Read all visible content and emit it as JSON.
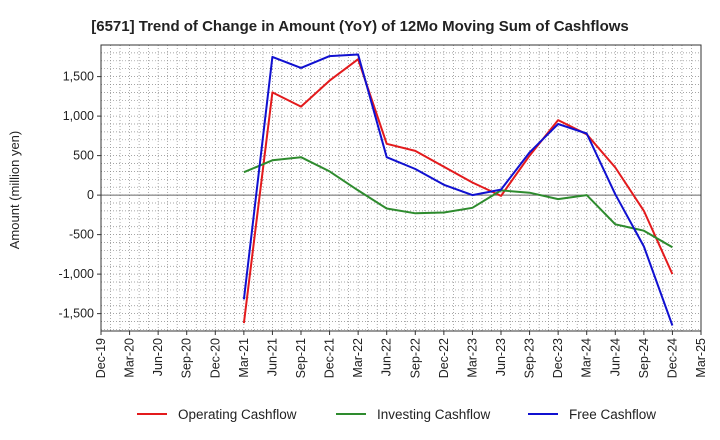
{
  "chart_data": {
    "type": "line",
    "title": "[6571]  Trend of Change in Amount (YoY) of 12Mo Moving Sum of Cashflows",
    "xlabel": "",
    "ylabel": "Amount (million yen)",
    "ylim": [
      -1720,
      1900
    ],
    "yticks": [
      1500,
      1000,
      500,
      0,
      -500,
      -1000,
      -1500
    ],
    "ytick_labels": [
      "1,500",
      "1,000",
      "500",
      "0",
      "-500",
      "-1,000",
      "-1,500"
    ],
    "xtick_labels": [
      "Dec-19",
      "Mar-20",
      "Jun-20",
      "Sep-20",
      "Dec-20",
      "Mar-21",
      "Jun-21",
      "Sep-21",
      "Dec-21",
      "Mar-22",
      "Jun-22",
      "Sep-22",
      "Dec-22",
      "Mar-23",
      "Jun-23",
      "Sep-23",
      "Dec-23",
      "Mar-24",
      "Jun-24",
      "Sep-24",
      "Dec-24",
      "Mar-25"
    ],
    "grid": true,
    "legend_position": "bottom",
    "series": [
      {
        "name": "Operating Cashflow",
        "color": "#e31a1c",
        "points": [
          {
            "x": "Mar-21",
            "y": -1620
          },
          {
            "x": "Jun-21",
            "y": 1300
          },
          {
            "x": "Sep-21",
            "y": 1120
          },
          {
            "x": "Dec-21",
            "y": 1450
          },
          {
            "x": "Mar-22",
            "y": 1720
          },
          {
            "x": "Jun-22",
            "y": 650
          },
          {
            "x": "Sep-22",
            "y": 560
          },
          {
            "x": "Dec-22",
            "y": 360
          },
          {
            "x": "Mar-23",
            "y": 160
          },
          {
            "x": "Jun-23",
            "y": -10
          },
          {
            "x": "Sep-23",
            "y": 500
          },
          {
            "x": "Dec-23",
            "y": 950
          },
          {
            "x": "Mar-24",
            "y": 770
          },
          {
            "x": "Jun-24",
            "y": 350
          },
          {
            "x": "Sep-24",
            "y": -200
          },
          {
            "x": "Dec-24",
            "y": -1000
          }
        ]
      },
      {
        "name": "Investing Cashflow",
        "color": "#2e8b2e",
        "points": [
          {
            "x": "Mar-21",
            "y": 290
          },
          {
            "x": "Jun-21",
            "y": 440
          },
          {
            "x": "Sep-21",
            "y": 480
          },
          {
            "x": "Dec-21",
            "y": 300
          },
          {
            "x": "Mar-22",
            "y": 60
          },
          {
            "x": "Jun-22",
            "y": -170
          },
          {
            "x": "Sep-22",
            "y": -230
          },
          {
            "x": "Dec-22",
            "y": -220
          },
          {
            "x": "Mar-23",
            "y": -160
          },
          {
            "x": "Jun-23",
            "y": 60
          },
          {
            "x": "Sep-23",
            "y": 30
          },
          {
            "x": "Dec-23",
            "y": -50
          },
          {
            "x": "Mar-24",
            "y": 0
          },
          {
            "x": "Jun-24",
            "y": -370
          },
          {
            "x": "Sep-24",
            "y": -450
          },
          {
            "x": "Dec-24",
            "y": -660
          }
        ]
      },
      {
        "name": "Free Cashflow",
        "color": "#1010d0",
        "points": [
          {
            "x": "Mar-21",
            "y": -1320
          },
          {
            "x": "Jun-21",
            "y": 1750
          },
          {
            "x": "Sep-21",
            "y": 1610
          },
          {
            "x": "Dec-21",
            "y": 1760
          },
          {
            "x": "Mar-22",
            "y": 1780
          },
          {
            "x": "Jun-22",
            "y": 480
          },
          {
            "x": "Sep-22",
            "y": 330
          },
          {
            "x": "Dec-22",
            "y": 130
          },
          {
            "x": "Mar-23",
            "y": 0
          },
          {
            "x": "Jun-23",
            "y": 70
          },
          {
            "x": "Sep-23",
            "y": 540
          },
          {
            "x": "Dec-23",
            "y": 900
          },
          {
            "x": "Mar-24",
            "y": 780
          },
          {
            "x": "Jun-24",
            "y": 10
          },
          {
            "x": "Sep-24",
            "y": -650
          },
          {
            "x": "Dec-24",
            "y": -1650
          }
        ]
      }
    ]
  }
}
